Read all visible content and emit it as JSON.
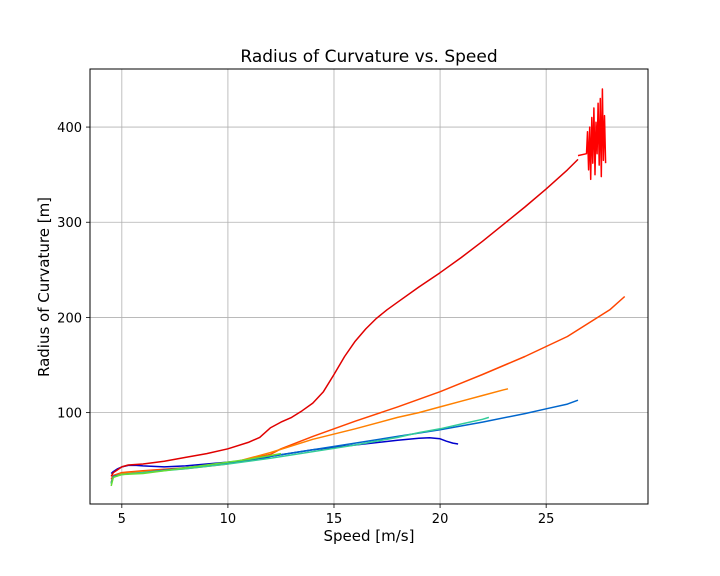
{
  "chart_data": {
    "type": "line",
    "title": "Radius of Curvature vs. Speed",
    "xlabel": "Speed [m/s]",
    "ylabel": "Radius of Curvature [m]",
    "xlim": [
      3.5,
      29.8
    ],
    "ylim": [
      4,
      461
    ],
    "xticks": [
      5,
      10,
      15,
      20,
      25
    ],
    "yticks": [
      100,
      200,
      300,
      400
    ],
    "xtick_labels": [
      "5",
      "10",
      "15",
      "20",
      "25"
    ],
    "ytick_labels": [
      "100",
      "200",
      "300",
      "400"
    ],
    "grid": true,
    "legend": "none",
    "series": [
      {
        "color": "#0000cc",
        "x": [
          4.5,
          4.6,
          4.8,
          5.0,
          5.3,
          5.6,
          6,
          7,
          8,
          9,
          10,
          11,
          11.5,
          11.8,
          12,
          14,
          16,
          18,
          19,
          19.5,
          20,
          20.3,
          20.6,
          20.85
        ],
        "y": [
          36,
          38,
          41,
          43,
          44.5,
          44.8,
          44,
          43,
          44,
          46,
          48,
          50,
          52,
          52,
          54,
          61,
          66,
          71,
          73,
          73.5,
          72.5,
          70,
          68,
          67
        ]
      },
      {
        "color": "#e00000",
        "x": [
          4.5,
          4.6,
          4.8,
          5.0,
          5.3,
          6,
          7,
          8,
          9,
          10,
          11,
          11.5,
          12,
          12.5,
          13,
          13.5,
          14,
          14.5,
          15,
          15.5,
          16,
          16.5,
          17,
          17.5,
          18,
          19,
          20,
          21,
          22,
          23,
          24,
          25,
          26,
          26.5
        ],
        "y": [
          33,
          37,
          40,
          43,
          45,
          46,
          49,
          53,
          57,
          62,
          69,
          74,
          84,
          90,
          95,
          102,
          110,
          122,
          140,
          159,
          175,
          188,
          199,
          208,
          216,
          232,
          247,
          263,
          280,
          298,
          316,
          335,
          355,
          366
        ]
      },
      {
        "color": "#ff0000",
        "x": [
          26.5,
          26.9,
          26.95,
          27.0,
          27.05,
          27.1,
          27.15,
          27.2,
          27.25,
          27.3,
          27.35,
          27.4,
          27.45,
          27.5,
          27.55,
          27.6,
          27.65,
          27.7,
          27.75,
          27.8
        ],
        "y": [
          370,
          372,
          395,
          355,
          400,
          345,
          410,
          362,
          420,
          350,
          405,
          372,
          425,
          360,
          430,
          348,
          440,
          365,
          412,
          362
        ]
      },
      {
        "color": "#ff4500",
        "x": [
          4.5,
          4.6,
          5.0,
          6,
          8,
          10,
          12,
          12.5,
          14,
          16,
          18,
          20,
          22,
          24,
          26,
          28,
          28.7
        ],
        "y": [
          30,
          34,
          37,
          39,
          42,
          47,
          56,
          62,
          75,
          91,
          106,
          122,
          140,
          159,
          180,
          208,
          222
        ]
      },
      {
        "color": "#ff8000",
        "x": [
          4.5,
          4.6,
          5.0,
          6,
          8,
          10,
          12,
          14,
          16,
          18,
          19,
          20,
          21,
          22,
          23,
          23.2
        ],
        "y": [
          27,
          33,
          36,
          38,
          41,
          46,
          58,
          72,
          83,
          95,
          100,
          106,
          112,
          118,
          124,
          125
        ]
      },
      {
        "color": "#0066cc",
        "x": [
          4.5,
          4.6,
          5.0,
          6,
          8,
          10,
          12,
          14,
          16,
          18,
          20,
          22,
          24,
          25,
          26,
          26.5
        ],
        "y": [
          26,
          33,
          35,
          37,
          42,
          47,
          54,
          61,
          68,
          75,
          82,
          90,
          99,
          104,
          109,
          113
        ]
      },
      {
        "color": "#33cc99",
        "x": [
          4.5,
          4.6,
          5.0,
          6,
          8,
          10,
          12,
          14,
          16,
          18,
          19,
          20,
          21,
          22,
          22.3
        ],
        "y": [
          25,
          32,
          35,
          37,
          41,
          46,
          52,
          59,
          66,
          74,
          79,
          83,
          88,
          93,
          95
        ]
      },
      {
        "color": "#66dd33",
        "x": [
          4.5,
          4.6,
          5.0,
          6,
          7,
          8,
          9,
          10,
          11,
          12,
          12.5
        ],
        "y": [
          23,
          32,
          35,
          36,
          39,
          42,
          45,
          48,
          51,
          55,
          57
        ]
      }
    ]
  }
}
